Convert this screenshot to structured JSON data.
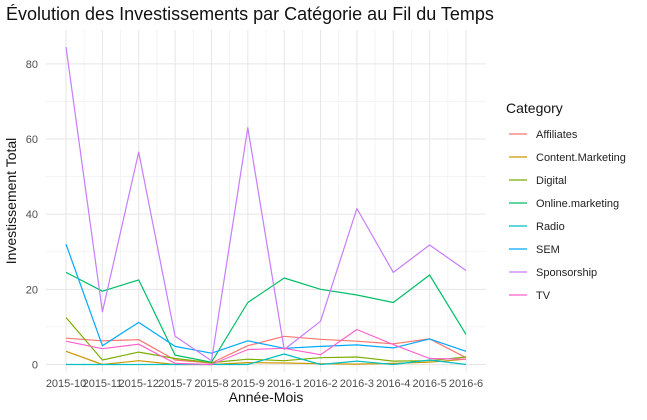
{
  "chart_data": {
    "type": "line",
    "title": "Évolution des Investissements par Catégorie au Fil du Temps",
    "xlabel": "Année-Mois",
    "ylabel": "Investissement Total",
    "legend_title": "Category",
    "legend_position": "right",
    "grid": true,
    "x": [
      "2015-10",
      "2015-11",
      "2015-12",
      "2015-7",
      "2015-8",
      "2015-9",
      "2016-1",
      "2016-2",
      "2016-3",
      "2016-4",
      "2016-5",
      "2016-6"
    ],
    "ylim": [
      -2,
      89
    ],
    "yticks": [
      0,
      20,
      40,
      60,
      80
    ],
    "series": [
      {
        "name": "Affiliates",
        "color": "#F8766D",
        "values": [
          7.0,
          6.3,
          6.6,
          1.2,
          0.4,
          5.0,
          7.5,
          6.7,
          6.2,
          5.5,
          6.8,
          1.8
        ]
      },
      {
        "name": "Content.Marketing",
        "color": "#CD9600",
        "values": [
          3.5,
          0.0,
          1.0,
          0.0,
          0.0,
          0.5,
          0.4,
          0.2,
          0.1,
          0.3,
          0.6,
          1.4
        ]
      },
      {
        "name": "Digital",
        "color": "#7CAE00",
        "values": [
          12.5,
          1.2,
          3.3,
          1.6,
          0.5,
          1.4,
          1.0,
          1.8,
          2.0,
          0.9,
          1.0,
          2.0
        ]
      },
      {
        "name": "Online.marketing",
        "color": "#00BE67",
        "values": [
          24.5,
          19.5,
          22.5,
          2.5,
          0.6,
          16.5,
          23.0,
          20.0,
          18.5,
          16.5,
          23.8,
          8.0
        ]
      },
      {
        "name": "Radio",
        "color": "#00BFC4",
        "values": [
          0.0,
          0.0,
          0.0,
          0.0,
          0.0,
          0.0,
          2.8,
          0.0,
          0.9,
          0.0,
          1.2,
          0.0
        ]
      },
      {
        "name": "SEM",
        "color": "#00A9FF",
        "values": [
          32.0,
          5.0,
          11.2,
          4.8,
          3.0,
          6.3,
          4.3,
          4.8,
          5.2,
          4.4,
          6.8,
          3.5
        ]
      },
      {
        "name": "Sponsorship",
        "color": "#C77CFF",
        "values": [
          84.5,
          14.0,
          56.5,
          7.5,
          1.0,
          63.0,
          4.0,
          11.5,
          41.5,
          24.5,
          31.8,
          25.0
        ]
      },
      {
        "name": "TV",
        "color": "#FF61CC",
        "values": [
          6.2,
          4.2,
          5.4,
          0.3,
          0.0,
          4.0,
          4.3,
          2.6,
          9.3,
          5.3,
          1.6,
          1.4
        ]
      }
    ]
  }
}
